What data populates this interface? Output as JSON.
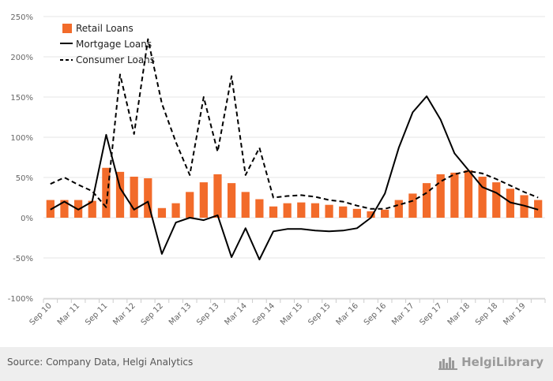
{
  "chart_data": {
    "type": "bar",
    "title": "",
    "xlabel": "",
    "ylabel": "",
    "ylim": [
      -100,
      250
    ],
    "y_ticks": [
      "-100%",
      "-50%",
      "0%",
      "50%",
      "100%",
      "150%",
      "200%",
      "250%"
    ],
    "y_tick_values": [
      -100,
      -50,
      0,
      50,
      100,
      150,
      200,
      250
    ],
    "x_tick_labels": [
      "Sep 10",
      "Mar 11",
      "Sep 11",
      "Mar 12",
      "Sep 12",
      "Mar 13",
      "Sep 13",
      "Mar 14",
      "Sep 14",
      "Mar 15",
      "Sep 15",
      "Mar 16",
      "Sep 16",
      "Mar 17",
      "Sep 17",
      "Mar 18",
      "Sep 18",
      "Mar 19"
    ],
    "grid": true,
    "legend_position": "top-left",
    "categories": [
      "Sep 10",
      "Dec 10",
      "Mar 11",
      "Jun 11",
      "Sep 11",
      "Dec 11",
      "Mar 12",
      "Jun 12",
      "Sep 12",
      "Dec 12",
      "Mar 13",
      "Jun 13",
      "Sep 13",
      "Dec 13",
      "Mar 14",
      "Jun 14",
      "Sep 14",
      "Dec 14",
      "Mar 15",
      "Jun 15",
      "Sep 15",
      "Dec 15",
      "Mar 16",
      "Jun 16",
      "Sep 16",
      "Dec 16",
      "Mar 17",
      "Jun 17",
      "Sep 17",
      "Dec 17",
      "Mar 18",
      "Jun 18",
      "Sep 18",
      "Dec 18",
      "Mar 19",
      "Jun 19"
    ],
    "series": [
      {
        "name": "Retail Loans",
        "type": "bar",
        "color": "#f26b2a",
        "values": [
          22,
          22,
          22,
          21,
          62,
          57,
          51,
          49,
          12,
          18,
          32,
          44,
          54,
          43,
          32,
          23,
          14,
          18,
          19,
          18,
          16,
          14,
          11,
          8,
          10,
          22,
          30,
          43,
          54,
          56,
          59,
          51,
          44,
          36,
          28,
          22
        ]
      },
      {
        "name": "Mortgage Loans",
        "type": "line",
        "color": "#000000",
        "dash": "solid",
        "values": [
          10,
          20,
          10,
          20,
          103,
          37,
          10,
          20,
          -45,
          -6,
          0,
          -3,
          3,
          -49,
          -13,
          -52,
          -17,
          -14,
          -14,
          -16,
          -17,
          -16,
          -13,
          0,
          30,
          87,
          131,
          151,
          122,
          80,
          59,
          38,
          31,
          19,
          15,
          10
        ]
      },
      {
        "name": "Consumer Loans",
        "type": "line",
        "color": "#000000",
        "dash": "dashed",
        "values": [
          42,
          50,
          41,
          33,
          13,
          178,
          104,
          222,
          142,
          94,
          53,
          150,
          82,
          176,
          53,
          87,
          25,
          27,
          28,
          26,
          22,
          20,
          15,
          11,
          11,
          16,
          21,
          31,
          45,
          54,
          58,
          55,
          48,
          40,
          32,
          25
        ]
      }
    ]
  },
  "footer": {
    "source": "Source: Company Data, Helgi Analytics",
    "brand": "HelgiLibrary"
  }
}
